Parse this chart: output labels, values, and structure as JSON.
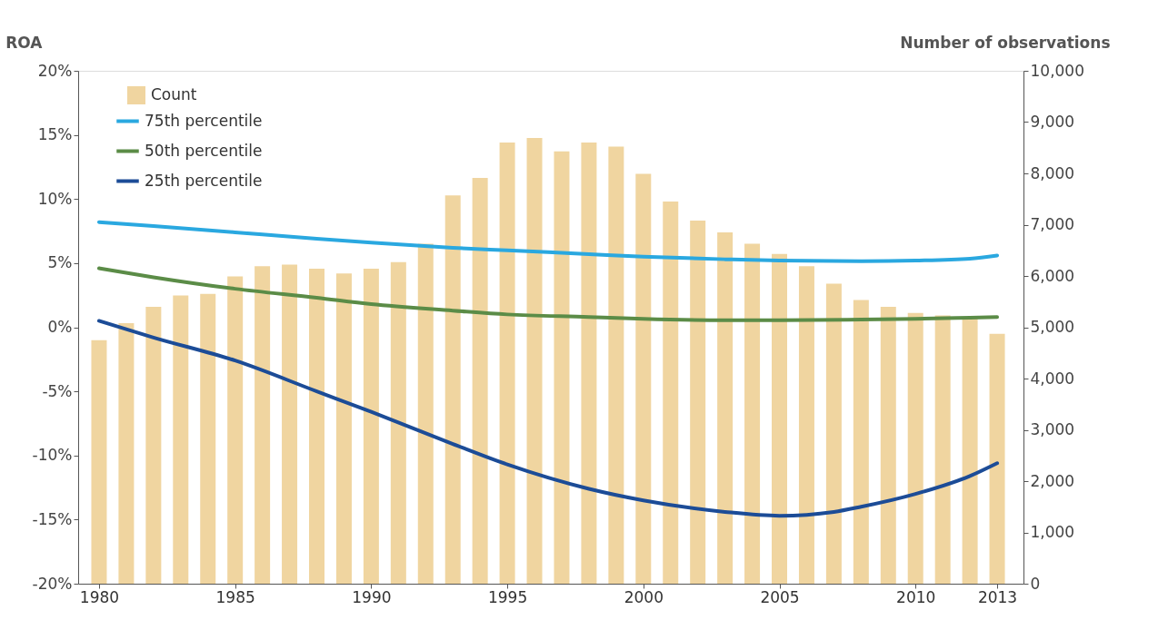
{
  "chart_data": {
    "type": "line",
    "ylabel": "ROA",
    "y2label": "Number of observations",
    "x": [
      1980,
      1981,
      1982,
      1983,
      1984,
      1985,
      1986,
      1987,
      1988,
      1989,
      1990,
      1991,
      1992,
      1993,
      1994,
      1995,
      1996,
      1997,
      1998,
      1999,
      2000,
      2001,
      2002,
      2003,
      2004,
      2005,
      2006,
      2007,
      2008,
      2009,
      2010,
      2011,
      2012,
      2013
    ],
    "xlim": [
      1979.4,
      2013.8
    ],
    "xticks": [
      1980,
      1985,
      1990,
      1995,
      2000,
      2005,
      2010,
      2013
    ],
    "ylim": [
      -20,
      20
    ],
    "yticks": [
      {
        "value": -20,
        "label": "-20%"
      },
      {
        "value": -15,
        "label": "-15%"
      },
      {
        "value": -10,
        "label": "-10%"
      },
      {
        "value": -5,
        "label": "-5%"
      },
      {
        "value": 0,
        "label": "0%"
      },
      {
        "value": 5,
        "label": "5%"
      },
      {
        "value": 10,
        "label": "10%"
      },
      {
        "value": 15,
        "label": "15%"
      },
      {
        "value": 20,
        "label": "20%"
      }
    ],
    "y2lim": [
      0,
      10000
    ],
    "y2ticks": [
      0,
      {
        "value": 1000,
        "label": "1,000"
      },
      {
        "value": 2000,
        "label": "2,000"
      },
      {
        "value": 3000,
        "label": "3,000"
      },
      {
        "value": 4000,
        "label": "4,000"
      },
      {
        "value": 5000,
        "label": "5,000"
      },
      {
        "value": 6000,
        "label": "6,000"
      },
      {
        "value": 7000,
        "label": "7,000"
      },
      {
        "value": 8000,
        "label": "8,000"
      },
      {
        "value": 9000,
        "label": "9,000"
      },
      {
        "value": 10000,
        "label": "10,000"
      }
    ],
    "grid": false,
    "legend": "top left",
    "line_style": "solid",
    "marker": "none",
    "series": [
      {
        "name": "Count",
        "type": "bar",
        "axis": "y2",
        "color": "#f0d5a0",
        "values": [
          4750,
          5080,
          5400,
          5620,
          5650,
          5990,
          6190,
          6220,
          6140,
          6050,
          6140,
          6270,
          6630,
          7570,
          7910,
          8600,
          8690,
          8430,
          8600,
          8520,
          7990,
          7450,
          7080,
          6850,
          6630,
          6430,
          6190,
          5850,
          5530,
          5400,
          5280,
          5230,
          5180,
          4870
        ]
      },
      {
        "name": "75th percentile",
        "color": "#2aa8e0",
        "x": [
          1980,
          1982,
          1985,
          1988,
          1990,
          1993,
          1995,
          1998,
          2000,
          2003,
          2005,
          2008,
          2010,
          2012,
          2013
        ],
        "values": [
          8.2,
          7.9,
          7.4,
          6.9,
          6.6,
          6.2,
          6.0,
          5.7,
          5.5,
          5.3,
          5.2,
          5.15,
          5.2,
          5.35,
          5.6
        ]
      },
      {
        "name": "50th percentile",
        "color": "#5b8c47",
        "x": [
          1980,
          1982,
          1985,
          1988,
          1990,
          1993,
          1995,
          1998,
          2000,
          2003,
          2005,
          2008,
          2010,
          2012,
          2013
        ],
        "values": [
          4.6,
          3.9,
          3.0,
          2.3,
          1.8,
          1.3,
          1.0,
          0.8,
          0.65,
          0.55,
          0.55,
          0.6,
          0.65,
          0.75,
          0.8
        ]
      },
      {
        "name": "25th percentile",
        "color": "#1c4c97",
        "x": [
          1980,
          1982,
          1985,
          1988,
          1990,
          1993,
          1995,
          1998,
          2000,
          2003,
          2005,
          2007,
          2008,
          2010,
          2012,
          2013
        ],
        "values": [
          0.5,
          -0.8,
          -2.6,
          -5.0,
          -6.6,
          -9.1,
          -10.7,
          -12.6,
          -13.5,
          -14.4,
          -14.7,
          -14.4,
          -14.0,
          -13.0,
          -11.6,
          -10.6
        ]
      }
    ]
  }
}
